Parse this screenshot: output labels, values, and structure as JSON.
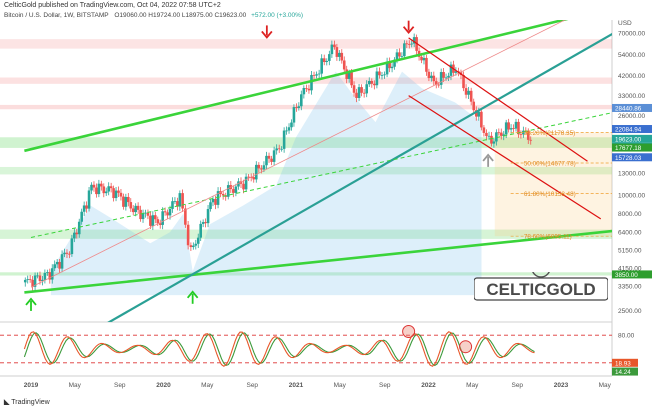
{
  "header": {
    "published_line": "CelticGold published on TradingView.com, Oct 04, 2022 07:58 UTC+2",
    "symbol_line": "Bitcoin / U.S. Dollar, 1W, BITSTAMP",
    "ohlc": "O19060.00 H19724.00 L18975.00 C19623.00",
    "change": "+572.00 (+3.00%)"
  },
  "logo_text": "CELTICGOLD",
  "footer": "TradingView",
  "colors": {
    "up": "#26a69a",
    "down": "#ef5350",
    "green_line": "#3ad43a",
    "teal_line": "#2aa095",
    "red_line": "#d11",
    "fib_orange": "#f0a030",
    "stoch_k": "#e8572a",
    "stoch_d": "#3c9a3c"
  },
  "chart_data": [
    {
      "type": "candlestick",
      "title": "Bitcoin / U.S. Dollar, 1W, BITSTAMP",
      "scale": "log",
      "currency": "USD",
      "y_ticks": [
        70000,
        54000,
        42000,
        33000,
        26000,
        20000,
        13000,
        10000,
        8000,
        6400,
        5150,
        4150,
        3350,
        2500
      ],
      "x_ticks": [
        "2019",
        "May",
        "Sep",
        "2020",
        "May",
        "Sep",
        "2021",
        "May",
        "Sep",
        "2022",
        "May",
        "Sep",
        "2023",
        "May"
      ],
      "price_labels": [
        {
          "value": "28440.86",
          "kind": "resistance"
        },
        {
          "value": "22084.94",
          "kind": "level"
        },
        {
          "value": "19623.00",
          "kind": "last"
        },
        {
          "value": "5d 19h",
          "kind": "countdown"
        },
        {
          "value": "17677.18",
          "kind": "support"
        },
        {
          "value": "15728.03",
          "kind": "level"
        },
        {
          "value": "3850.00",
          "kind": "support"
        }
      ],
      "fib_levels": [
        {
          "label": "38.20%(21178.35)",
          "value": 21178.35
        },
        {
          "label": "50.00%(14677.78)",
          "value": 14677.78
        },
        {
          "label": "61.80%(10158.48)",
          "value": 10158.48
        },
        {
          "label": "78.60%(6095.11)",
          "value": 6095.11
        }
      ],
      "weekly_closes_approx": [
        {
          "date": "2018-12",
          "close": 3500
        },
        {
          "date": "2019-02",
          "close": 3800
        },
        {
          "date": "2019-04",
          "close": 5200
        },
        {
          "date": "2019-06",
          "close": 11000
        },
        {
          "date": "2019-08",
          "close": 10500
        },
        {
          "date": "2019-10",
          "close": 8300
        },
        {
          "date": "2019-12",
          "close": 7200
        },
        {
          "date": "2020-02",
          "close": 9800
        },
        {
          "date": "2020-03",
          "close": 5000
        },
        {
          "date": "2020-05",
          "close": 9500
        },
        {
          "date": "2020-08",
          "close": 11800
        },
        {
          "date": "2020-11",
          "close": 17500
        },
        {
          "date": "2021-01",
          "close": 33000
        },
        {
          "date": "2021-04",
          "close": 60000
        },
        {
          "date": "2021-06",
          "close": 33000
        },
        {
          "date": "2021-09",
          "close": 47000
        },
        {
          "date": "2021-11",
          "close": 65000
        },
        {
          "date": "2022-01",
          "close": 38000
        },
        {
          "date": "2022-03",
          "close": 46000
        },
        {
          "date": "2022-06",
          "close": 19000
        },
        {
          "date": "2022-08",
          "close": 23000
        },
        {
          "date": "2022-10",
          "close": 19623
        }
      ]
    },
    {
      "type": "line",
      "title": "Stochastic",
      "y_ticks": [
        80.0,
        20.0
      ],
      "last_values": [
        "18.93",
        "14.24"
      ],
      "ylim": [
        0,
        100
      ]
    }
  ]
}
